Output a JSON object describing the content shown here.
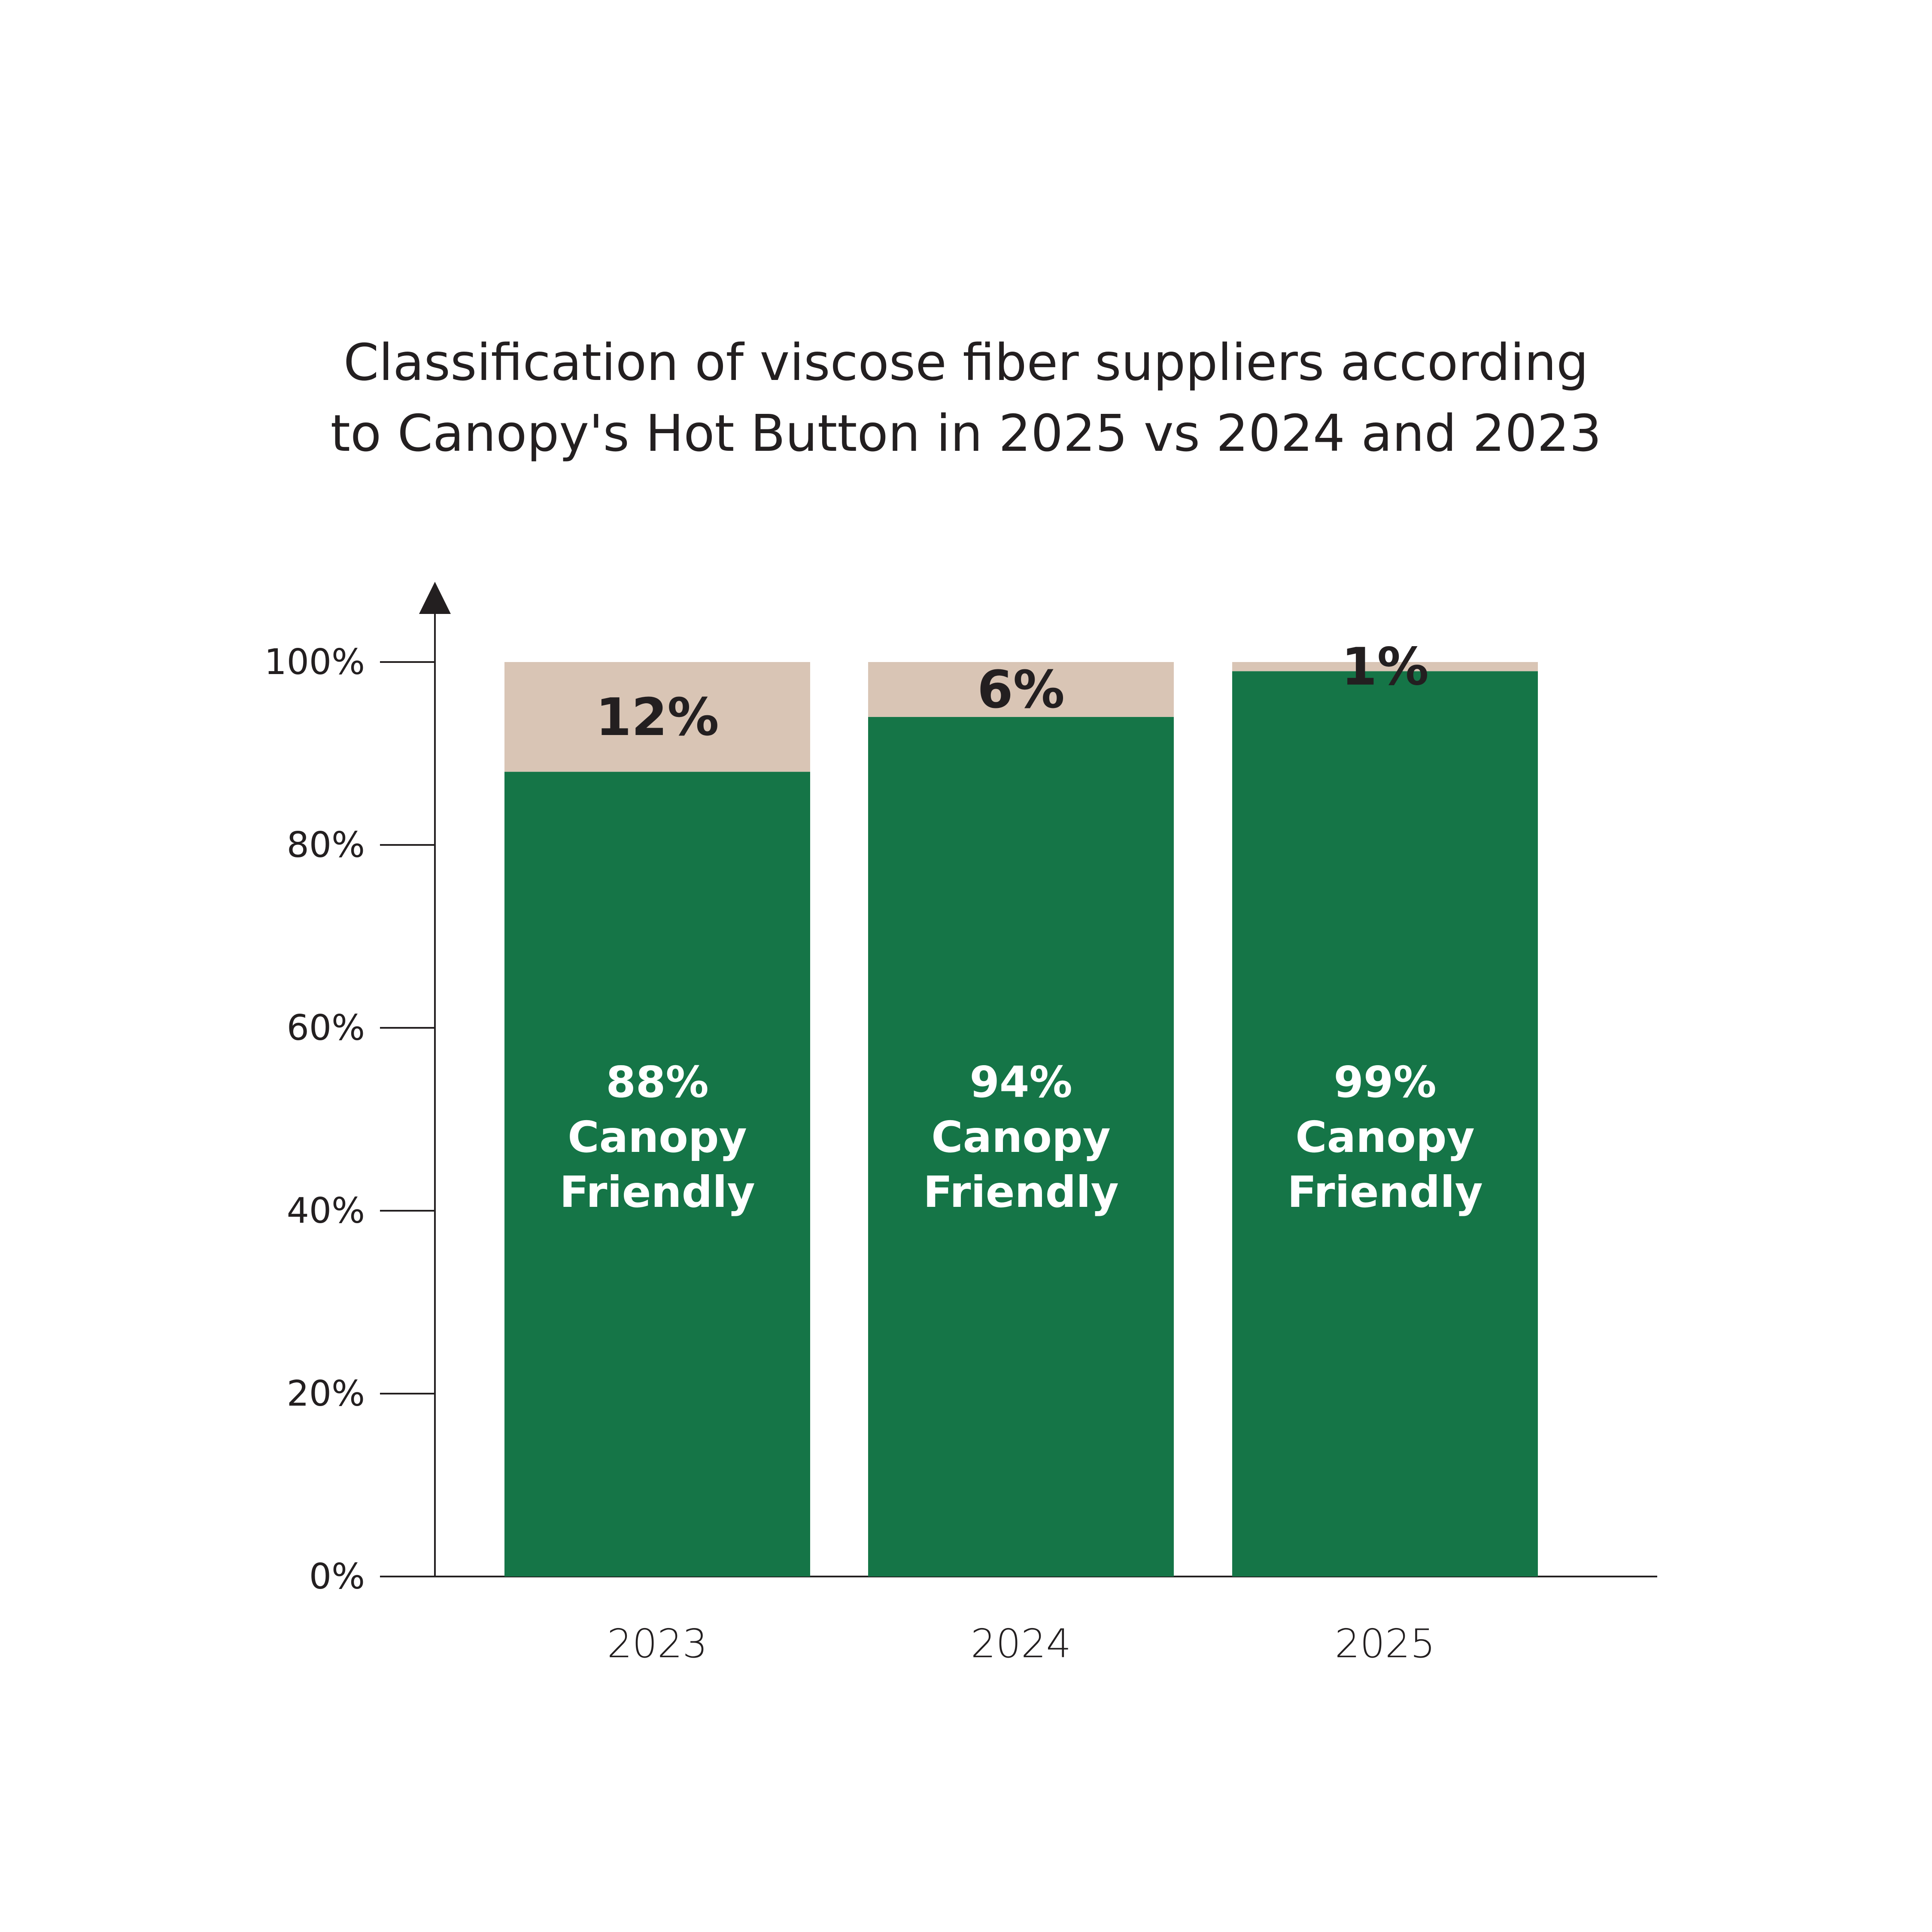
{
  "chart_data": {
    "type": "bar",
    "stacked": true,
    "title_lines": [
      "Classification of viscose fiber suppliers according",
      "to Canopy's Hot Button in 2025 vs 2024 and 2023"
    ],
    "categories": [
      "2023",
      "2024",
      "2025"
    ],
    "series": [
      {
        "values": [
          88,
          94,
          99
        ],
        "color": "#157547",
        "labels": [
          [
            "88%",
            "Canopy",
            "Friendly"
          ],
          [
            "94%",
            "Canopy",
            "Friendly"
          ],
          [
            "99%",
            "Canopy",
            "Friendly"
          ]
        ]
      },
      {
        "values": [
          12,
          6,
          1
        ],
        "color": "#d9c5b5",
        "labels": [
          "12%",
          "6%",
          "1%"
        ]
      }
    ],
    "y_ticks": [
      {
        "value": 0,
        "label": "0%"
      },
      {
        "value": 20,
        "label": "20%"
      },
      {
        "value": 40,
        "label": "40%"
      },
      {
        "value": 60,
        "label": "60%"
      },
      {
        "value": 80,
        "label": "80%"
      },
      {
        "value": 100,
        "label": "100%"
      }
    ],
    "ylim": [
      0,
      100
    ],
    "grid": false,
    "axis_color": "#231f20"
  }
}
